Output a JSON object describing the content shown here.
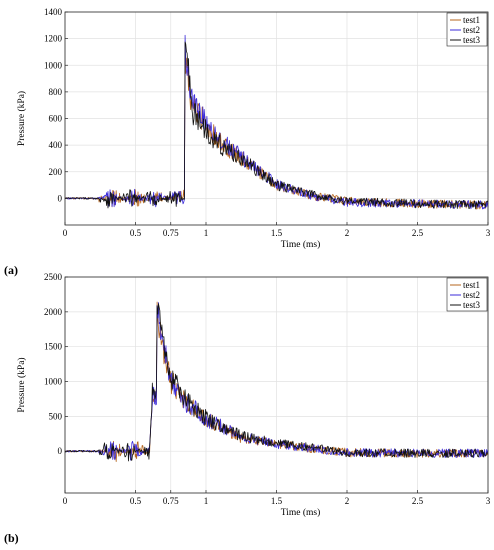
{
  "panels": [
    {
      "label": "(a)"
    },
    {
      "label": "(b)"
    }
  ],
  "series_colors": {
    "test1": "#b5651d",
    "test2": "#3b2bd9",
    "test3": "#111111"
  },
  "chart_data": [
    {
      "type": "line",
      "xlabel": "Time (ms)",
      "ylabel": "Pressure (kPa)",
      "xlim": [
        0,
        3
      ],
      "ylim": [
        -200,
        1400
      ],
      "xticks": [
        0,
        0.5,
        0.75,
        1,
        1.5,
        2,
        2.5,
        3
      ],
      "yticks": [
        0,
        200,
        400,
        600,
        800,
        1000,
        1200,
        1400
      ],
      "grid": true,
      "legend": "top-right",
      "series": [
        {
          "name": "test1",
          "x": [
            0,
            0.25,
            0.5,
            0.75,
            0.82,
            0.85,
            0.9,
            1.0,
            1.1,
            1.25,
            1.5,
            1.75,
            2.0,
            2.5,
            3.0
          ],
          "values": [
            0,
            0,
            0,
            0,
            0,
            1050,
            700,
            560,
            420,
            300,
            100,
            20,
            -20,
            -40,
            -50
          ]
        },
        {
          "name": "test2",
          "x": [
            0,
            0.25,
            0.5,
            0.75,
            0.82,
            0.85,
            0.9,
            1.0,
            1.1,
            1.25,
            1.5,
            1.75,
            2.0,
            2.5,
            3.0
          ],
          "values": [
            0,
            0,
            0,
            0,
            0,
            1150,
            720,
            580,
            440,
            310,
            110,
            20,
            -30,
            -40,
            -50
          ]
        },
        {
          "name": "test3",
          "x": [
            0,
            0.25,
            0.5,
            0.75,
            0.82,
            0.85,
            0.9,
            1.0,
            1.1,
            1.25,
            1.5,
            1.75,
            2.0,
            2.5,
            3.0
          ],
          "values": [
            0,
            0,
            0,
            0,
            0,
            1300,
            650,
            520,
            400,
            300,
            100,
            30,
            -20,
            -40,
            -50
          ]
        }
      ]
    },
    {
      "type": "line",
      "xlabel": "Time (ms)",
      "ylabel": "Pressure (kPa)",
      "xlim": [
        0,
        3
      ],
      "ylim": [
        -600,
        2500
      ],
      "xticks": [
        0,
        0.5,
        0.75,
        1,
        1.5,
        2,
        2.5,
        3
      ],
      "yticks": [
        0,
        500,
        1000,
        1500,
        2000,
        2500
      ],
      "grid": true,
      "legend": "top-right",
      "series": [
        {
          "name": "test1",
          "x": [
            0,
            0.25,
            0.4,
            0.5,
            0.6,
            0.65,
            0.7,
            0.75,
            0.85,
            1.0,
            1.25,
            1.5,
            2.0,
            2.5,
            3.0
          ],
          "values": [
            0,
            0,
            0,
            0,
            0,
            2050,
            1400,
            1000,
            700,
            450,
            200,
            100,
            -20,
            -30,
            -30
          ]
        },
        {
          "name": "test2",
          "x": [
            0,
            0.25,
            0.4,
            0.5,
            0.6,
            0.65,
            0.7,
            0.75,
            0.85,
            1.0,
            1.25,
            1.5,
            2.0,
            2.5,
            3.0
          ],
          "values": [
            0,
            0,
            0,
            0,
            0,
            2100,
            1450,
            1050,
            720,
            460,
            210,
            100,
            -20,
            -30,
            -30
          ]
        },
        {
          "name": "test3",
          "x": [
            0,
            0.25,
            0.4,
            0.5,
            0.6,
            0.65,
            0.7,
            0.75,
            0.85,
            1.0,
            1.25,
            1.5,
            2.0,
            2.5,
            3.0
          ],
          "values": [
            0,
            0,
            0,
            0,
            0,
            2200,
            1500,
            1050,
            750,
            480,
            220,
            120,
            -20,
            -30,
            -30
          ]
        }
      ]
    }
  ]
}
